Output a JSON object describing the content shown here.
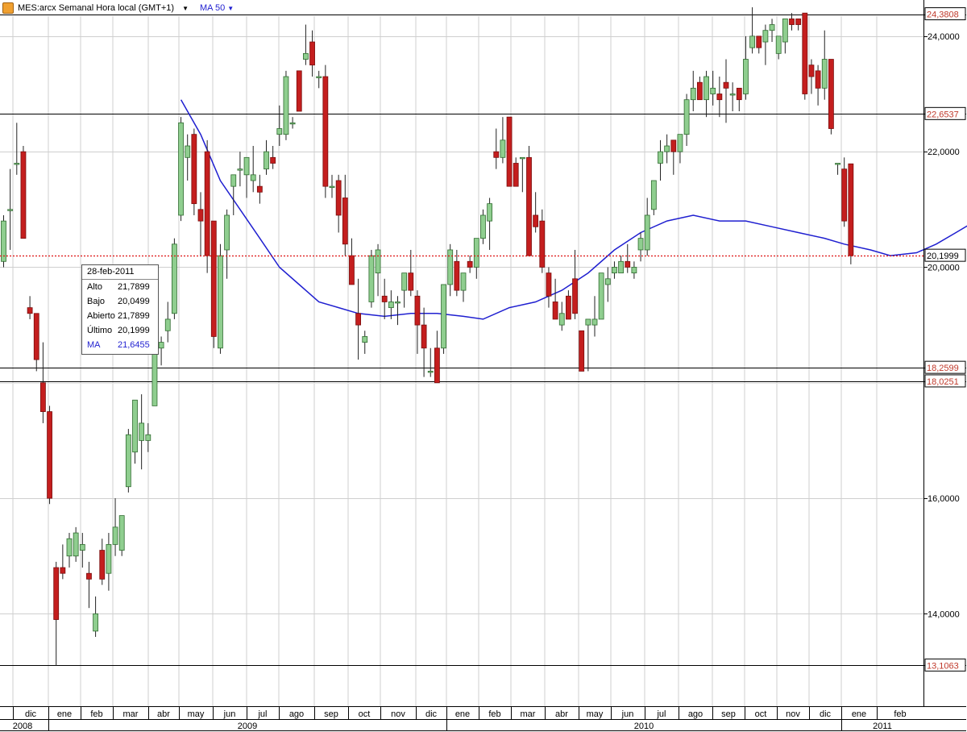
{
  "toolbar": {
    "symbol_title": "MES:arcx Semanal Hora local (GMT+1)",
    "ma_label": "MA 50"
  },
  "colors": {
    "up": "#8fce8f",
    "down": "#c41e1e",
    "ma_line": "#1f1fd0",
    "last_price_line": "#dd1111",
    "label_text": "#c0392b"
  },
  "tooltip": {
    "date": "28-feb-2011",
    "rows": [
      {
        "label": "Alto",
        "value": "21,7899"
      },
      {
        "label": "Bajo",
        "value": "20,0499"
      },
      {
        "label": "Abierto",
        "value": "21,7899"
      },
      {
        "label": "Último",
        "value": "20,1999"
      }
    ],
    "ma": {
      "label": "MA",
      "value": "21,6455"
    }
  },
  "chart_data": {
    "type": "candlestick",
    "ylim": [
      12.4,
      24.8
    ],
    "y_ticks": [
      {
        "value": 14,
        "label": "14,0000"
      },
      {
        "value": 16,
        "label": "16,0000"
      },
      {
        "value": 20,
        "label": "20,0000"
      },
      {
        "value": 22,
        "label": "22,0000"
      },
      {
        "value": 24,
        "label": "24,0000"
      }
    ],
    "level_lines": [
      {
        "value": 24.3808,
        "label": "24,3808"
      },
      {
        "value": 22.6537,
        "label": "22,6537"
      },
      {
        "value": 18.2599,
        "label": "18,2599"
      },
      {
        "value": 18.0251,
        "label": "18,0251"
      },
      {
        "value": 13.1063,
        "label": "13,1063"
      }
    ],
    "last_price": {
      "value": 20.1999,
      "label": "20,1999"
    },
    "months": [
      "dic",
      "ene",
      "feb",
      "mar",
      "abr",
      "may",
      "jun",
      "jul",
      "ago",
      "sep",
      "oct",
      "nov",
      "dic",
      "ene",
      "feb",
      "mar",
      "abr",
      "may",
      "jun",
      "jul",
      "ago",
      "sep",
      "oct",
      "nov",
      "dic",
      "ene",
      "feb"
    ],
    "years": [
      "2008",
      "2009",
      "2010",
      "2011"
    ],
    "candles": [
      [
        20.1,
        20.9,
        20.0,
        20.8
      ],
      [
        21.0,
        21.7,
        20.3,
        21.0
      ],
      [
        21.8,
        22.5,
        21.6,
        21.8
      ],
      [
        22.0,
        22.1,
        20.5,
        20.5
      ],
      [
        19.3,
        19.5,
        19.1,
        19.2
      ],
      [
        19.2,
        19.2,
        18.2,
        18.4
      ],
      [
        18.0,
        18.7,
        17.3,
        17.5
      ],
      [
        17.5,
        17.6,
        15.9,
        16.0
      ],
      [
        14.8,
        14.9,
        13.1,
        13.9
      ],
      [
        14.8,
        15.2,
        14.6,
        14.7
      ],
      [
        15.0,
        15.4,
        14.8,
        15.3
      ],
      [
        15.0,
        15.5,
        14.9,
        15.4
      ],
      [
        15.1,
        15.4,
        14.8,
        15.2
      ],
      [
        14.7,
        14.9,
        14.1,
        14.6
      ],
      [
        13.7,
        14.3,
        13.6,
        14.0
      ],
      [
        15.1,
        15.3,
        14.5,
        14.6
      ],
      [
        14.7,
        15.4,
        14.4,
        15.2
      ],
      [
        15.2,
        16.0,
        15.0,
        15.5
      ],
      [
        15.1,
        15.7,
        15.0,
        15.7
      ],
      [
        16.2,
        17.2,
        16.1,
        17.1
      ],
      [
        16.8,
        17.7,
        16.6,
        17.7
      ],
      [
        17.0,
        17.8,
        16.5,
        17.3
      ],
      [
        17.0,
        17.3,
        16.8,
        17.1
      ],
      [
        17.6,
        19.0,
        17.6,
        18.9
      ],
      [
        18.6,
        18.8,
        18.3,
        18.7
      ],
      [
        18.9,
        19.4,
        18.7,
        19.1
      ],
      [
        19.2,
        20.5,
        19.1,
        20.4
      ],
      [
        20.9,
        22.6,
        20.8,
        22.5
      ],
      [
        21.9,
        22.3,
        21.5,
        22.1
      ],
      [
        22.3,
        22.4,
        20.9,
        21.1
      ],
      [
        21.0,
        21.3,
        20.2,
        20.8
      ],
      [
        22.0,
        22.2,
        19.9,
        20.2
      ],
      [
        20.8,
        20.8,
        18.6,
        18.8
      ],
      [
        18.6,
        20.4,
        18.5,
        20.2
      ],
      [
        20.3,
        21.0,
        19.8,
        20.9
      ],
      [
        21.4,
        21.6,
        20.9,
        21.6
      ],
      [
        21.7,
        22.0,
        21.4,
        21.7
      ],
      [
        21.6,
        21.8,
        21.2,
        21.9
      ],
      [
        21.5,
        22.1,
        21.3,
        21.6
      ],
      [
        21.4,
        21.6,
        21.1,
        21.3
      ],
      [
        21.7,
        22.2,
        21.6,
        22.0
      ],
      [
        21.9,
        22.1,
        21.7,
        21.8
      ],
      [
        22.3,
        22.8,
        22.1,
        22.4
      ],
      [
        22.3,
        23.4,
        22.2,
        23.3
      ],
      [
        22.5,
        22.6,
        22.4,
        22.5
      ],
      [
        23.4,
        23.4,
        22.7,
        22.7
      ],
      [
        23.6,
        24.2,
        23.5,
        23.7
      ],
      [
        23.9,
        24.1,
        23.3,
        23.5
      ],
      [
        23.3,
        23.4,
        23.1,
        23.3
      ],
      [
        23.3,
        23.5,
        21.2,
        21.4
      ],
      [
        21.4,
        21.6,
        21.2,
        21.4
      ],
      [
        21.5,
        21.6,
        20.6,
        20.9
      ],
      [
        21.2,
        21.6,
        20.2,
        20.4
      ],
      [
        20.2,
        20.5,
        19.7,
        19.7
      ],
      [
        19.2,
        19.8,
        18.4,
        19.0
      ],
      [
        18.7,
        18.9,
        18.5,
        18.8
      ],
      [
        19.4,
        20.3,
        19.3,
        20.2
      ],
      [
        19.9,
        20.4,
        19.5,
        20.3
      ],
      [
        19.5,
        19.8,
        19.1,
        19.4
      ],
      [
        19.3,
        19.6,
        19.1,
        19.4
      ],
      [
        19.4,
        19.5,
        19.0,
        19.4
      ],
      [
        19.6,
        19.9,
        19.3,
        19.9
      ],
      [
        19.9,
        20.3,
        19.5,
        19.6
      ],
      [
        19.5,
        19.6,
        18.5,
        19.0
      ],
      [
        19.0,
        19.3,
        18.1,
        18.6
      ],
      [
        18.2,
        18.6,
        18.1,
        18.2
      ],
      [
        18.6,
        18.9,
        18.0,
        18.0
      ],
      [
        18.6,
        19.7,
        18.5,
        19.7
      ],
      [
        19.7,
        20.4,
        19.5,
        20.3
      ],
      [
        20.1,
        20.3,
        19.5,
        19.6
      ],
      [
        19.6,
        19.9,
        19.4,
        19.9
      ],
      [
        20.1,
        20.2,
        19.9,
        20.0
      ],
      [
        20.0,
        20.4,
        19.8,
        20.5
      ],
      [
        20.5,
        21.0,
        20.4,
        20.9
      ],
      [
        20.8,
        21.2,
        20.3,
        21.1
      ],
      [
        22.0,
        22.4,
        21.7,
        21.9
      ],
      [
        21.9,
        22.6,
        21.8,
        22.2
      ],
      [
        22.6,
        22.6,
        21.4,
        21.4
      ],
      [
        21.8,
        21.9,
        21.4,
        21.4
      ],
      [
        21.9,
        21.9,
        21.3,
        21.9
      ],
      [
        21.9,
        22.1,
        20.2,
        20.2
      ],
      [
        20.9,
        21.3,
        20.6,
        20.7
      ],
      [
        20.8,
        21.0,
        19.9,
        20.0
      ],
      [
        19.9,
        20.0,
        19.3,
        19.5
      ],
      [
        19.4,
        19.8,
        19.1,
        19.1
      ],
      [
        19.0,
        19.4,
        18.9,
        19.2
      ],
      [
        19.5,
        19.6,
        19.1,
        19.1
      ],
      [
        19.8,
        20.3,
        19.1,
        19.2
      ],
      [
        18.9,
        18.9,
        18.2,
        18.2
      ],
      [
        19.0,
        19.1,
        18.2,
        19.1
      ],
      [
        19.0,
        19.5,
        18.8,
        19.1
      ],
      [
        19.1,
        19.9,
        19.1,
        19.9
      ],
      [
        19.7,
        20.0,
        19.4,
        19.8
      ],
      [
        19.9,
        20.1,
        19.8,
        20.0
      ],
      [
        19.9,
        20.2,
        19.9,
        20.1
      ],
      [
        20.1,
        20.4,
        19.9,
        20.0
      ],
      [
        19.9,
        20.1,
        19.8,
        20.0
      ],
      [
        20.3,
        20.6,
        20.1,
        20.5
      ],
      [
        20.3,
        21.2,
        20.2,
        20.9
      ],
      [
        21.0,
        21.5,
        20.9,
        21.5
      ],
      [
        21.8,
        22.2,
        21.5,
        22.0
      ],
      [
        22.0,
        22.3,
        21.8,
        22.1
      ],
      [
        22.2,
        22.2,
        21.6,
        22.0
      ],
      [
        22.0,
        22.3,
        21.8,
        22.3
      ],
      [
        22.3,
        23.0,
        22.1,
        22.9
      ],
      [
        22.9,
        23.4,
        22.7,
        23.1
      ],
      [
        23.2,
        23.3,
        22.9,
        22.9
      ],
      [
        22.9,
        23.4,
        22.6,
        23.3
      ],
      [
        23.0,
        23.4,
        22.8,
        23.1
      ],
      [
        23.0,
        23.3,
        22.6,
        22.9
      ],
      [
        23.2,
        23.6,
        22.5,
        23.1
      ],
      [
        23.0,
        23.2,
        22.7,
        23.0
      ],
      [
        23.1,
        23.1,
        22.7,
        22.9
      ],
      [
        23.0,
        24.0,
        22.9,
        23.6
      ],
      [
        23.8,
        24.5,
        23.7,
        24.0
      ],
      [
        24.0,
        24.0,
        23.7,
        23.8
      ],
      [
        23.9,
        24.2,
        23.5,
        24.1
      ],
      [
        24.1,
        24.3,
        23.9,
        24.2
      ],
      [
        23.7,
        24.0,
        23.6,
        24.0
      ],
      [
        23.9,
        24.3,
        23.7,
        24.3
      ],
      [
        24.3,
        24.4,
        24.1,
        24.2
      ],
      [
        24.3,
        24.3,
        24.1,
        24.2
      ],
      [
        24.4,
        24.4,
        22.9,
        23.0
      ],
      [
        23.5,
        23.6,
        23.0,
        23.3
      ],
      [
        23.4,
        23.5,
        22.8,
        23.1
      ],
      [
        23.1,
        24.1,
        22.9,
        23.6
      ],
      [
        23.6,
        23.6,
        22.3,
        22.4
      ],
      [
        21.8,
        21.8,
        21.6,
        21.8
      ],
      [
        21.7,
        21.9,
        20.7,
        20.8
      ],
      [
        21.7899,
        21.7899,
        20.0499,
        20.1999
      ]
    ],
    "ma50": [
      [
        27,
        22.9
      ],
      [
        28,
        22.7
      ],
      [
        30,
        22.3
      ],
      [
        33,
        21.5
      ],
      [
        36,
        21.0
      ],
      [
        39,
        20.5
      ],
      [
        42,
        20.0
      ],
      [
        45,
        19.7
      ],
      [
        48,
        19.4
      ],
      [
        51,
        19.3
      ],
      [
        54,
        19.2
      ],
      [
        58,
        19.15
      ],
      [
        62,
        19.2
      ],
      [
        66,
        19.2
      ],
      [
        70,
        19.15
      ],
      [
        73,
        19.1
      ],
      [
        77,
        19.3
      ],
      [
        81,
        19.4
      ],
      [
        85,
        19.6
      ],
      [
        89,
        19.9
      ],
      [
        93,
        20.3
      ],
      [
        97,
        20.6
      ],
      [
        101,
        20.8
      ],
      [
        105,
        20.9
      ],
      [
        109,
        20.8
      ],
      [
        113,
        20.8
      ],
      [
        117,
        20.7
      ],
      [
        121,
        20.6
      ],
      [
        125,
        20.5
      ],
      [
        128,
        20.4
      ],
      [
        132,
        20.3
      ],
      [
        135,
        20.2
      ],
      [
        139,
        20.25
      ],
      [
        142,
        20.4
      ],
      [
        145,
        20.6
      ],
      [
        148,
        20.8
      ],
      [
        151,
        20.95
      ],
      [
        154,
        21.15
      ],
      [
        157,
        21.35
      ],
      [
        160,
        21.5
      ],
      [
        163,
        21.6
      ],
      [
        165,
        21.65
      ]
    ]
  }
}
